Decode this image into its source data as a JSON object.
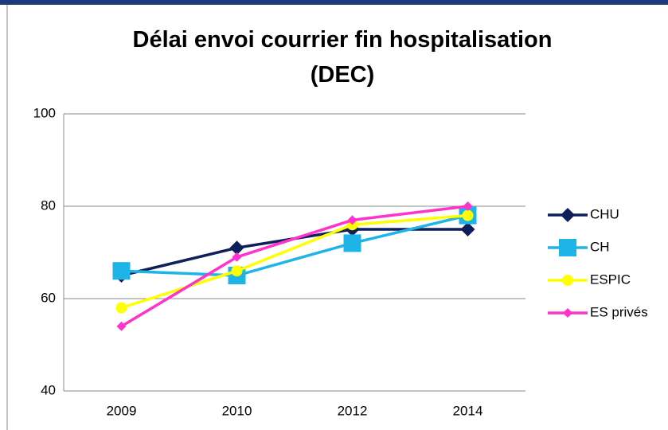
{
  "chart_data": {
    "type": "line",
    "title": "Délai envoi courrier fin hospitalisation (DEC)",
    "categories": [
      "2009",
      "2010",
      "2012",
      "2014"
    ],
    "series": [
      {
        "name": "CHU",
        "color": "#0f1f5c",
        "marker": "diamond",
        "values": [
          65,
          71,
          75,
          75
        ]
      },
      {
        "name": "CH",
        "color": "#1eb4e8",
        "marker": "square",
        "values": [
          66,
          65,
          72,
          78
        ]
      },
      {
        "name": "ESPIC",
        "color": "#ffff00",
        "marker": "circle",
        "values": [
          58,
          66,
          76,
          78
        ]
      },
      {
        "name": "ES privés",
        "color": "#ff33cc",
        "marker": "small-diamond",
        "values": [
          54,
          69,
          77,
          80
        ]
      }
    ],
    "ylim": [
      40,
      100
    ],
    "yticks": [
      40,
      60,
      80,
      100
    ],
    "grid": true,
    "legend": "right"
  }
}
